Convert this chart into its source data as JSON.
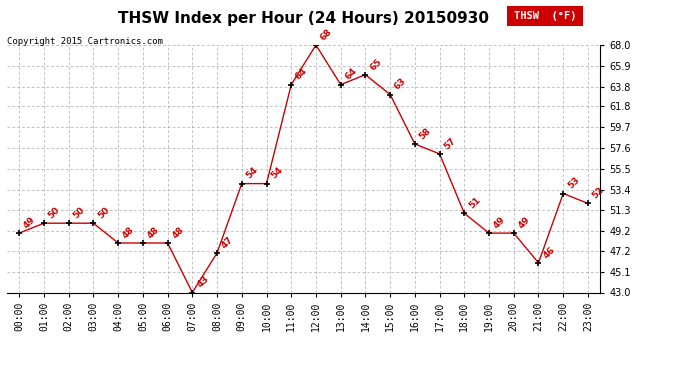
{
  "title": "THSW Index per Hour (24 Hours) 20150930",
  "copyright": "Copyright 2015 Cartronics.com",
  "legend_label": "THSW  (°F)",
  "hours": [
    "00:00",
    "01:00",
    "02:00",
    "03:00",
    "04:00",
    "05:00",
    "06:00",
    "07:00",
    "08:00",
    "09:00",
    "10:00",
    "11:00",
    "12:00",
    "13:00",
    "14:00",
    "15:00",
    "16:00",
    "17:00",
    "18:00",
    "19:00",
    "20:00",
    "21:00",
    "22:00",
    "23:00"
  ],
  "values": [
    49,
    50,
    50,
    50,
    48,
    48,
    48,
    43,
    47,
    54,
    54,
    64,
    68,
    64,
    65,
    63,
    58,
    57,
    51,
    49,
    49,
    46,
    53,
    52
  ],
  "line_color": "#cc0000",
  "marker_color": "#000000",
  "point_label_color": "#cc0000",
  "background_color": "#ffffff",
  "grid_color": "#aaaaaa",
  "ylim_min": 43.0,
  "ylim_max": 68.0,
  "yticks": [
    43.0,
    45.1,
    47.2,
    49.2,
    51.3,
    53.4,
    55.5,
    57.6,
    59.7,
    61.8,
    63.8,
    65.9,
    68.0
  ],
  "title_fontsize": 11,
  "tick_fontsize": 7,
  "label_fontsize": 6.5,
  "copyright_fontsize": 6.5,
  "legend_fontsize": 7.5,
  "figsize": [
    6.9,
    3.75
  ],
  "dpi": 100
}
